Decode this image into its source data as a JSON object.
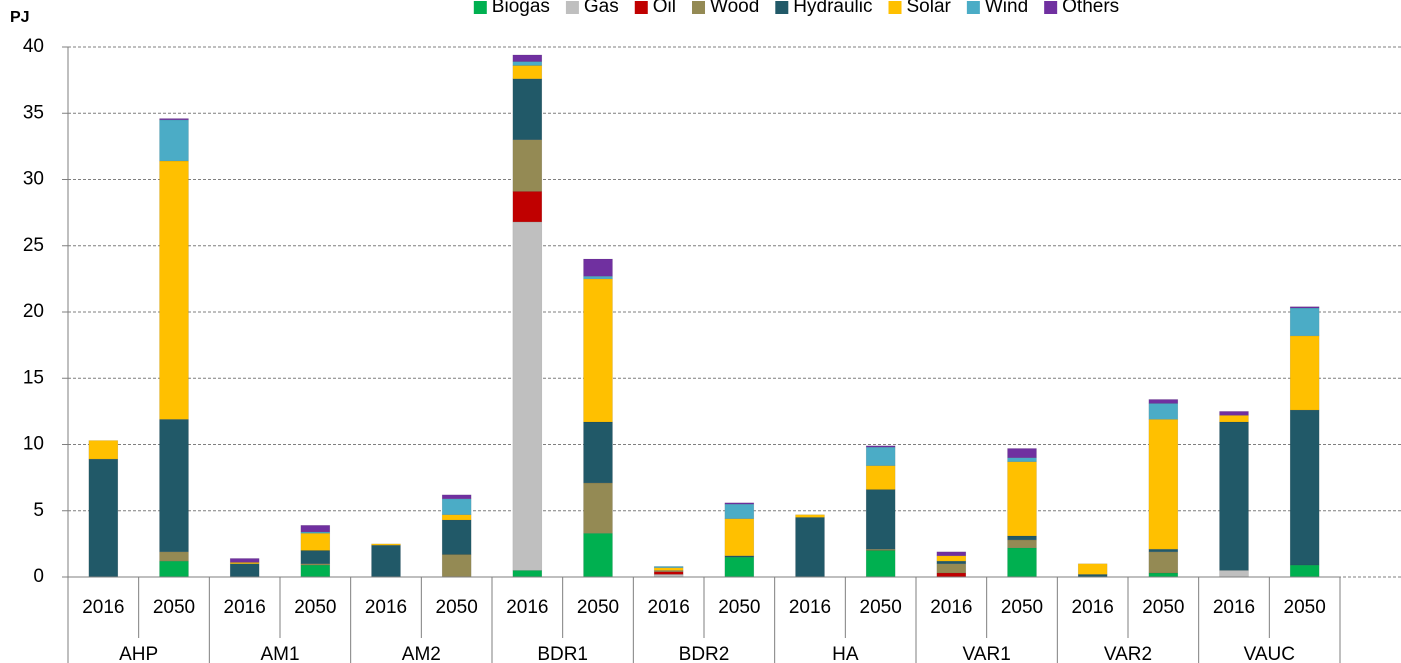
{
  "chart_data": {
    "type": "stacked_bar",
    "ylabel": "PJ",
    "categories": [
      "2016",
      "2050",
      "2016",
      "2050",
      "2016",
      "2050",
      "2016",
      "2050",
      "2016",
      "2050",
      "2016",
      "2050",
      "2016",
      "2050",
      "2016",
      "2050",
      "2016",
      "2050"
    ],
    "groups": [
      "AHP",
      "AM1",
      "AM2",
      "BDR1",
      "BDR2",
      "HA",
      "VAR1",
      "VAR2",
      "VAUC"
    ],
    "series": [
      {
        "name": "Biogas",
        "color": "#00b050",
        "values": [
          0,
          1.2,
          0,
          0.9,
          0,
          0,
          0.5,
          3.3,
          0,
          1.5,
          0,
          2.0,
          0,
          2.2,
          0,
          0.3,
          0,
          0.9
        ]
      },
      {
        "name": "Gas",
        "color": "#bfbfbf",
        "values": [
          0,
          0,
          0,
          0,
          0,
          0,
          26.3,
          0,
          0.2,
          0,
          0,
          0,
          0,
          0,
          0,
          0,
          0.5,
          0
        ]
      },
      {
        "name": "Oil",
        "color": "#c00000",
        "values": [
          0,
          0,
          0,
          0,
          0,
          0,
          2.3,
          0,
          0.2,
          0,
          0,
          0,
          0.3,
          0,
          0,
          0,
          0,
          0
        ]
      },
      {
        "name": "Wood",
        "color": "#948a54",
        "values": [
          0,
          0.7,
          0,
          0.1,
          0,
          1.7,
          3.9,
          3.8,
          0.1,
          0,
          0,
          0.1,
          0.7,
          0.6,
          0,
          1.6,
          0,
          0
        ]
      },
      {
        "name": "Hydraulic",
        "color": "#215968",
        "values": [
          8.9,
          10.0,
          1.0,
          1.0,
          2.4,
          2.6,
          4.6,
          4.6,
          0,
          0.1,
          4.5,
          4.5,
          0.2,
          0.3,
          0.2,
          0.2,
          11.2,
          11.7
        ]
      },
      {
        "name": "Solar",
        "color": "#ffc000",
        "values": [
          1.4,
          19.5,
          0.1,
          1.3,
          0.1,
          0.4,
          1.0,
          10.8,
          0.2,
          2.8,
          0.2,
          1.8,
          0.4,
          5.6,
          0.8,
          9.8,
          0.5,
          5.6
        ]
      },
      {
        "name": "Wind",
        "color": "#4bacc6",
        "values": [
          0,
          3.1,
          0,
          0.1,
          0,
          1.2,
          0.3,
          0.2,
          0.1,
          1.1,
          0,
          1.4,
          0,
          0.3,
          0,
          1.2,
          0,
          2.1
        ]
      },
      {
        "name": "Others",
        "color": "#7030a0",
        "values": [
          0,
          0.1,
          0.3,
          0.5,
          0,
          0.3,
          0.5,
          1.3,
          0,
          0.1,
          0,
          0.1,
          0.3,
          0.7,
          0,
          0.3,
          0.3,
          0.1
        ]
      }
    ],
    "ylim": [
      0,
      40
    ],
    "yticks": [
      0,
      5,
      10,
      15,
      20,
      25,
      30,
      35,
      40
    ],
    "grid": true,
    "legend": "top"
  }
}
